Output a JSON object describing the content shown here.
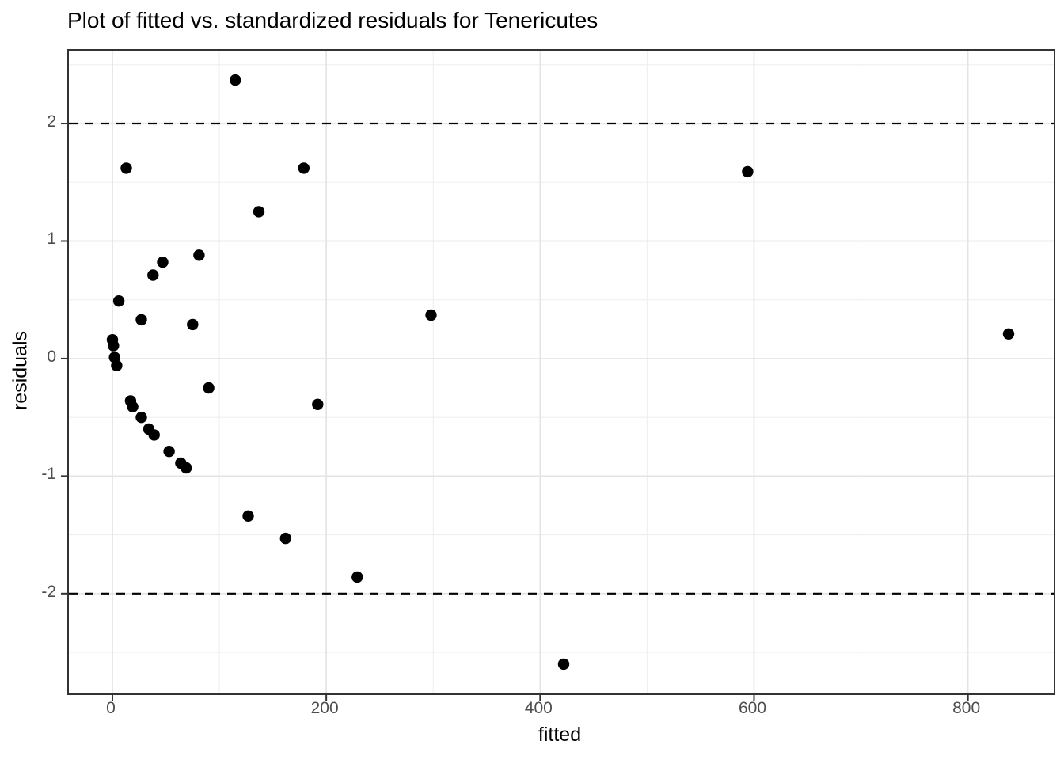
{
  "figure": {
    "kind": "ggplot-style scatter plot",
    "background": "#ffffff"
  },
  "chart_data": {
    "type": "scatter",
    "title": "Plot of fitted vs. standardized residuals for Tenericutes",
    "xlabel": "fitted",
    "ylabel": "residuals",
    "xlim": [
      -40.7,
      880.2
    ],
    "ylim": [
      -2.85,
      2.62
    ],
    "x_major_ticks": [
      0,
      200,
      400,
      600,
      800
    ],
    "x_minor_gridlines": [
      100,
      300,
      500,
      700
    ],
    "y_major_ticks": [
      -2,
      -1,
      0,
      1,
      2
    ],
    "y_minor_gridlines": [
      -2.5,
      -1.5,
      -0.5,
      0.5,
      1.5,
      2.5
    ],
    "reference_lines": {
      "style": "dashed",
      "color": "#000000",
      "y_values": [
        2,
        -2
      ]
    },
    "grid": true,
    "legend": "none",
    "point_style": {
      "shape": "filled-circle",
      "color": "#000000",
      "radius_px": 7.2
    },
    "points": [
      {
        "x": 115,
        "y": 2.37
      },
      {
        "x": 13,
        "y": 1.62
      },
      {
        "x": 179,
        "y": 1.62
      },
      {
        "x": 594,
        "y": 1.59
      },
      {
        "x": 137,
        "y": 1.25
      },
      {
        "x": 81,
        "y": 0.88
      },
      {
        "x": 47,
        "y": 0.82
      },
      {
        "x": 38,
        "y": 0.71
      },
      {
        "x": 6,
        "y": 0.49
      },
      {
        "x": 298,
        "y": 0.37
      },
      {
        "x": 27,
        "y": 0.33
      },
      {
        "x": 75,
        "y": 0.29
      },
      {
        "x": 838,
        "y": 0.21
      },
      {
        "x": 0,
        "y": 0.16
      },
      {
        "x": 1,
        "y": 0.11
      },
      {
        "x": 2,
        "y": 0.01
      },
      {
        "x": 4,
        "y": -0.06
      },
      {
        "x": 90,
        "y": -0.25
      },
      {
        "x": 17,
        "y": -0.36
      },
      {
        "x": 19,
        "y": -0.41
      },
      {
        "x": 192,
        "y": -0.39
      },
      {
        "x": 27,
        "y": -0.5
      },
      {
        "x": 34,
        "y": -0.6
      },
      {
        "x": 39,
        "y": -0.65
      },
      {
        "x": 53,
        "y": -0.79
      },
      {
        "x": 64,
        "y": -0.89
      },
      {
        "x": 69,
        "y": -0.93
      },
      {
        "x": 127,
        "y": -1.34
      },
      {
        "x": 162,
        "y": -1.53
      },
      {
        "x": 229,
        "y": -1.86
      },
      {
        "x": 422,
        "y": -2.6
      }
    ]
  },
  "colors": {
    "point": "#000000",
    "grid_major": "#e4e4e4",
    "grid_minor": "#efefef",
    "panel_border": "#333333",
    "tick_mark": "#333333",
    "tick_label": "#4d4d4d",
    "title_text": "#000000",
    "reference_line": "#000000",
    "background": "#ffffff"
  }
}
